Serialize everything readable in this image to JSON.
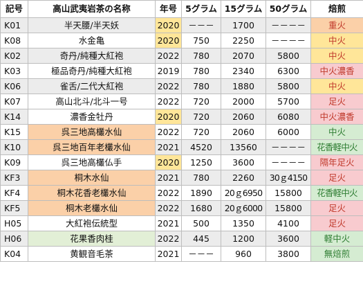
{
  "headers": [
    "記号",
    "高山武夷岩茶の名称",
    "年号",
    "5グラム",
    "15グラム",
    "50グラム",
    "焙煎"
  ],
  "colors": {
    "gray_row": "#ececec",
    "orange_name": "#fbd0a8",
    "green_name": "#e2efd6",
    "year_highlight": "#ffe699",
    "roast_orange": "#fbd0a8",
    "roast_yellow": "#ffe699",
    "roast_pink": "#f8cbcf",
    "roast_green": "#d5ecd2",
    "roast_red_text": "#c0392b",
    "roast_green_text": "#2e7d32"
  },
  "rows": [
    {
      "code": "K01",
      "name": "半天腰/半天妖",
      "year": "2020",
      "g5": "－－－",
      "g15": "1700",
      "g50": "－－－－",
      "roast": "重火",
      "row_bg": "gray",
      "name_bg": "",
      "year_hl": true,
      "roast_bg": "orange",
      "roast_color": "red"
    },
    {
      "code": "K08",
      "name": "水金亀",
      "year": "2020",
      "g5": "750",
      "g15": "2250",
      "g50": "－－－－",
      "roast": "中火",
      "row_bg": "white",
      "name_bg": "",
      "year_hl": true,
      "roast_bg": "yellow",
      "roast_color": "red"
    },
    {
      "code": "K02",
      "name": "奇丹/純種大紅袍",
      "year": "2022",
      "g5": "780",
      "g15": "2070",
      "g50": "5800",
      "roast": "中火",
      "row_bg": "gray",
      "name_bg": "",
      "year_hl": false,
      "roast_bg": "yellow",
      "roast_color": "red"
    },
    {
      "code": "K03",
      "name": "極品奇丹/純種大紅袍",
      "year": "2019",
      "g5": "780",
      "g15": "2340",
      "g50": "6300",
      "roast": "中火濃香",
      "row_bg": "white",
      "name_bg": "",
      "year_hl": false,
      "roast_bg": "pink",
      "roast_color": "red"
    },
    {
      "code": "K06",
      "name": "雀舌/二代大紅袍",
      "year": "2022",
      "g5": "780",
      "g15": "1880",
      "g50": "5800",
      "roast": "中火",
      "row_bg": "gray",
      "name_bg": "",
      "year_hl": false,
      "roast_bg": "yellow",
      "roast_color": "red"
    },
    {
      "code": "K07",
      "name": "高山北斗/北斗一号",
      "year": "2022",
      "g5": "720",
      "g15": "2000",
      "g50": "5700",
      "roast": "足火",
      "row_bg": "white",
      "name_bg": "",
      "year_hl": false,
      "roast_bg": "pink",
      "roast_color": "red"
    },
    {
      "code": "K14",
      "name": "濃香金牡丹",
      "year": "2020",
      "g5": "720",
      "g15": "2060",
      "g50": "6080",
      "roast": "中火濃香",
      "row_bg": "gray",
      "name_bg": "white",
      "year_hl": true,
      "roast_bg": "pink",
      "roast_color": "red"
    },
    {
      "code": "K15",
      "name": "呉三地高欉水仙",
      "year": "2022",
      "g5": "720",
      "g15": "2060",
      "g50": "6000",
      "roast": "中火",
      "row_bg": "white",
      "name_bg": "orange",
      "year_hl": false,
      "roast_bg": "green",
      "roast_color": "green"
    },
    {
      "code": "K10",
      "name": "呉三地百年老欉水仙",
      "year": "2021",
      "g5": "4520",
      "g15": "13560",
      "g50": "－－－－",
      "roast": "花香軽中火",
      "row_bg": "gray",
      "name_bg": "orange",
      "year_hl": false,
      "roast_bg": "green",
      "roast_color": "green"
    },
    {
      "code": "K09",
      "name": "呉三地高欉仏手",
      "year": "2020",
      "g5": "1250",
      "g15": "3600",
      "g50": "－－－－",
      "roast": "隔年足火",
      "row_bg": "white",
      "name_bg": "",
      "year_hl": true,
      "roast_bg": "pink",
      "roast_color": "red"
    },
    {
      "code": "KF3",
      "name": "桐木水仙",
      "year": "2021",
      "g5": "780",
      "g15": "2260",
      "g50": "30ｇ4150",
      "roast": "足火",
      "row_bg": "gray",
      "name_bg": "orange",
      "year_hl": false,
      "roast_bg": "pink",
      "roast_color": "red"
    },
    {
      "code": "KF4",
      "name": "桐木花香老欉水仙",
      "year": "2022",
      "g5": "1890",
      "g15": "20ｇ6950",
      "g50": "15800",
      "roast": "花香軽中火",
      "row_bg": "white",
      "name_bg": "orange",
      "year_hl": false,
      "roast_bg": "green",
      "roast_color": "green"
    },
    {
      "code": "KF5",
      "name": "桐木老欉水仙",
      "year": "2022",
      "g5": "1680",
      "g15": "20ｇ6000",
      "g50": "15800",
      "roast": "足火",
      "row_bg": "gray",
      "name_bg": "orange",
      "year_hl": false,
      "roast_bg": "pink",
      "roast_color": "red"
    },
    {
      "code": "H05",
      "name": "大紅袍伝統型",
      "year": "2021",
      "g5": "500",
      "g15": "1350",
      "g50": "4100",
      "roast": "足火",
      "row_bg": "white",
      "name_bg": "",
      "year_hl": false,
      "roast_bg": "pink",
      "roast_color": "red"
    },
    {
      "code": "H06",
      "name": "花果香肉桂",
      "year": "2022",
      "g5": "445",
      "g15": "1200",
      "g50": "3600",
      "roast": "軽中火",
      "row_bg": "gray",
      "name_bg": "green",
      "year_hl": false,
      "roast_bg": "green",
      "roast_color": "green"
    },
    {
      "code": "K04",
      "name": "黄観音毛茶",
      "year": "2021",
      "g5": "－－－",
      "g15": "960",
      "g50": "3800",
      "roast": "無焙煎",
      "row_bg": "white",
      "name_bg": "",
      "year_hl": false,
      "roast_bg": "green",
      "roast_color": "green"
    }
  ]
}
